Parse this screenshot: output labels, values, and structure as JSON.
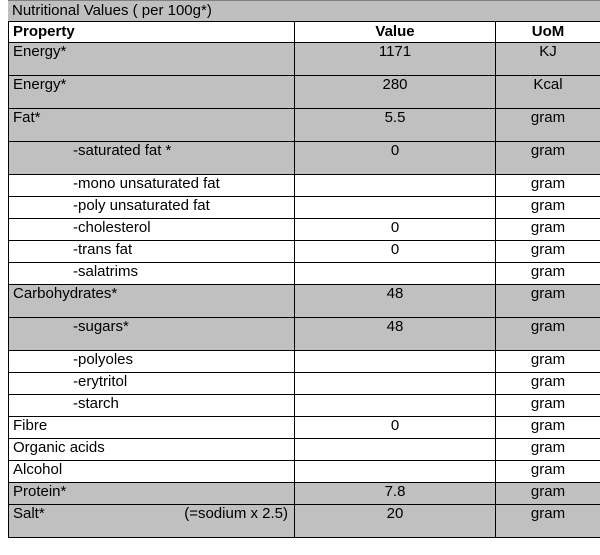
{
  "title": "Nutritional Values ( per 100g*)",
  "columns": {
    "property": "Property",
    "value": "Value",
    "uom": "UoM"
  },
  "rows": [
    {
      "property": "Energy*",
      "value": "1171",
      "uom": "KJ",
      "shade": true,
      "sub": false,
      "h": 33
    },
    {
      "property": "Energy*",
      "value": "280",
      "uom": "Kcal",
      "shade": true,
      "sub": false,
      "h": 33
    },
    {
      "property": "Fat*",
      "value": "5.5",
      "uom": "gram",
      "shade": true,
      "sub": false,
      "h": 33
    },
    {
      "property": "-saturated fat *",
      "value": "0",
      "uom": "gram",
      "shade": true,
      "sub": true,
      "h": 33
    },
    {
      "property": "-mono unsaturated fat",
      "value": "",
      "uom": "gram",
      "shade": false,
      "sub": true,
      "h": 22
    },
    {
      "property": "-poly unsaturated fat",
      "value": "",
      "uom": "gram",
      "shade": false,
      "sub": true,
      "h": 22
    },
    {
      "property": "-cholesterol",
      "value": "0",
      "uom": "gram",
      "shade": false,
      "sub": true,
      "h": 22
    },
    {
      "property": "-trans fat",
      "value": "0",
      "uom": "gram",
      "shade": false,
      "sub": true,
      "h": 22
    },
    {
      "property": "-salatrims",
      "value": "",
      "uom": "gram",
      "shade": false,
      "sub": true,
      "h": 22
    },
    {
      "property": "Carbohydrates*",
      "value": "48",
      "uom": "gram",
      "shade": true,
      "sub": false,
      "h": 33
    },
    {
      "property": "-sugars*",
      "value": "48",
      "uom": "gram",
      "shade": true,
      "sub": true,
      "h": 33
    },
    {
      "property": "-polyoles",
      "value": "",
      "uom": "gram",
      "shade": false,
      "sub": true,
      "h": 22
    },
    {
      "property": "-erytritol",
      "value": "",
      "uom": "gram",
      "shade": false,
      "sub": true,
      "h": 22
    },
    {
      "property": "-starch",
      "value": "",
      "uom": "gram",
      "shade": false,
      "sub": true,
      "h": 22
    },
    {
      "property": "Fibre",
      "value": "0",
      "uom": "gram",
      "shade": false,
      "sub": false,
      "h": 22
    },
    {
      "property": "Organic acids",
      "value": "",
      "uom": "gram",
      "shade": false,
      "sub": false,
      "h": 22
    },
    {
      "property": "Alcohol",
      "value": "",
      "uom": "gram",
      "shade": false,
      "sub": false,
      "h": 22
    },
    {
      "property": "Protein*",
      "value": "7.8",
      "uom": "gram",
      "shade": true,
      "sub": false,
      "h": 22
    },
    {
      "property": "Salt*",
      "note": "(=sodium x 2.5)",
      "value": "20",
      "uom": "gram",
      "shade": true,
      "sub": false,
      "h": 33
    }
  ],
  "colors": {
    "shade": "#c0c0c0",
    "title_bg": "#bfbfbf",
    "border": "#000000"
  }
}
